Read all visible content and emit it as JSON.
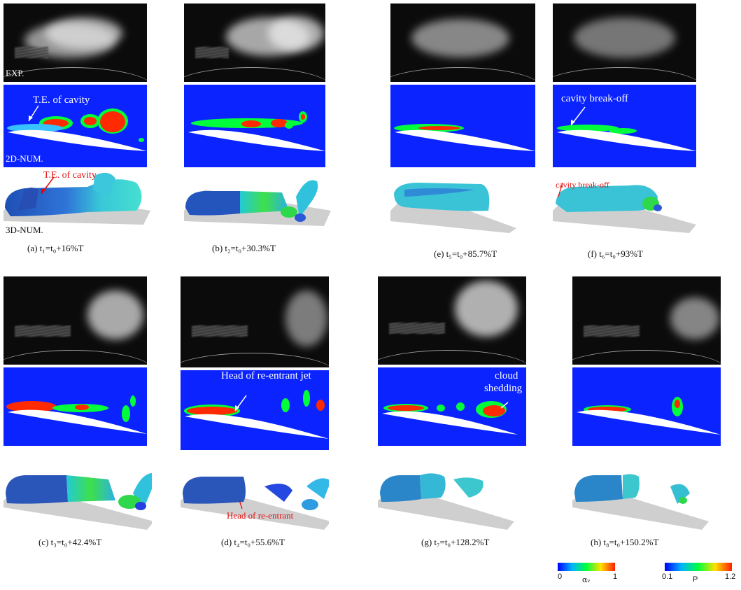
{
  "row_labels": {
    "exp": "EXP.",
    "num2d": "2D-NUM.",
    "num3d": "3D-NUM."
  },
  "annotations": {
    "te_cavity_2d": "T.E. of cavity",
    "te_cavity_3d": "T.E. of cavity",
    "breakoff_2d": "cavity break-off",
    "breakoff_3d": "cavity break-off",
    "reentrant_2d": "Head of re-entrant jet",
    "reentrant_3d": "Head of re-entrant",
    "cloud_2d_line1": "cloud",
    "cloud_2d_line2": "shedding"
  },
  "panels": [
    {
      "id": "a",
      "caption": "(a) t₁=t₀+16%T"
    },
    {
      "id": "b",
      "caption": "(b) t₂=t₀+30.3%T"
    },
    {
      "id": "e",
      "caption": "(e) t₅=t₀+85.7%T"
    },
    {
      "id": "f",
      "caption": "(f) t₆=t₀+93%T"
    },
    {
      "id": "c",
      "caption": "(c) t₃=t₀+42.4%T"
    },
    {
      "id": "d",
      "caption": "(d) t₄=t₀+55.6%T"
    },
    {
      "id": "g",
      "caption": "(g) t₇=t₀+128.2%T"
    },
    {
      "id": "h",
      "caption": "(h) t₈=t₀+150.2%T"
    }
  ],
  "colorbars": [
    {
      "min": "0",
      "max": "1",
      "label": "αᵥ"
    },
    {
      "min": "0.1",
      "max": "1.2",
      "label": "P"
    }
  ],
  "colors": {
    "water": "#0a23ff",
    "vapor": "#ff2a00",
    "mid": "#1cff3a",
    "exp_bg": "#0b0b0b",
    "hydrofoil": "#ffffff"
  }
}
